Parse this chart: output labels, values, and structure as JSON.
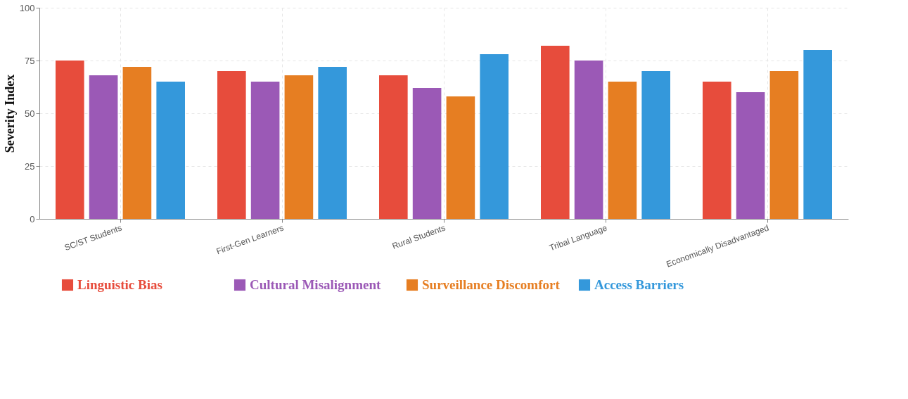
{
  "chart_data": {
    "type": "bar",
    "ylabel": "Severity Index",
    "categories": [
      "SC/ST Students",
      "First-Gen Learners",
      "Rural Students",
      "Tribal Language",
      "Economically Disadvantaged"
    ],
    "series": [
      {
        "name": "Linguistic Bias",
        "color": "#e74c3c",
        "values": [
          75,
          70,
          68,
          82,
          65
        ]
      },
      {
        "name": "Cultural Misalignment",
        "color": "#9b59b6",
        "values": [
          68,
          65,
          62,
          75,
          60
        ]
      },
      {
        "name": "Surveillance Discomfort",
        "color": "#e67e22",
        "values": [
          72,
          68,
          58,
          65,
          70
        ]
      },
      {
        "name": "Access Barriers",
        "color": "#3498db",
        "values": [
          65,
          72,
          78,
          70,
          80
        ]
      }
    ],
    "ylim": [
      0,
      100
    ],
    "yticks": [
      0,
      25,
      50,
      75,
      100
    ],
    "grid": true,
    "legend": "bottom"
  }
}
